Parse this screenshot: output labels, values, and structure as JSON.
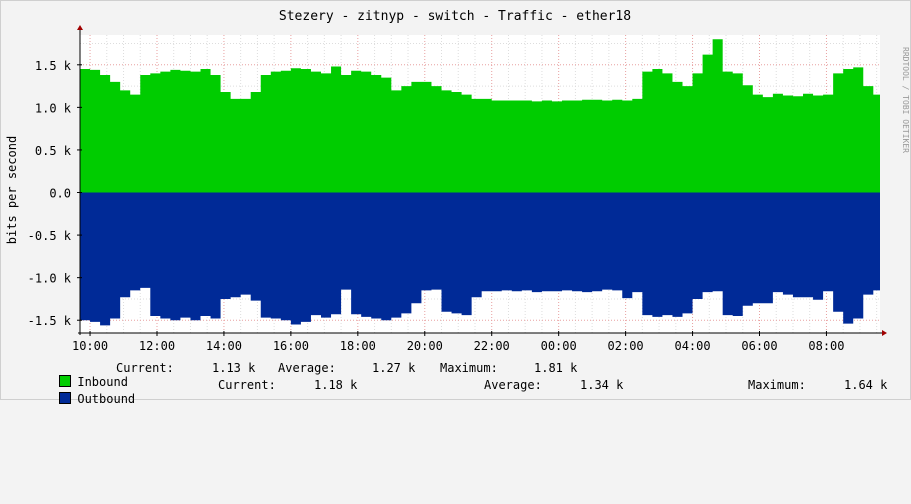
{
  "chart_data": {
    "type": "area",
    "title": "Stezery - zitnyp - switch - Traffic - ether18",
    "ylabel": "bits per second",
    "watermark": "RRDTOOL / TOBI OETIKER",
    "ylim": [
      -1650,
      1850
    ],
    "y_ticks": [
      {
        "value": 1500,
        "label": "1.5 k"
      },
      {
        "value": 1000,
        "label": "1.0 k"
      },
      {
        "value": 500,
        "label": "0.5 k"
      },
      {
        "value": 0,
        "label": "0.0"
      },
      {
        "value": -500,
        "label": "-0.5 k"
      },
      {
        "value": -1000,
        "label": "-1.0 k"
      },
      {
        "value": -1500,
        "label": "-1.5 k"
      }
    ],
    "xlim": [
      9.7,
      33.6
    ],
    "x_ticks": [
      {
        "value": 10,
        "label": "10:00"
      },
      {
        "value": 12,
        "label": "12:00"
      },
      {
        "value": 14,
        "label": "14:00"
      },
      {
        "value": 16,
        "label": "16:00"
      },
      {
        "value": 18,
        "label": "18:00"
      },
      {
        "value": 20,
        "label": "20:00"
      },
      {
        "value": 22,
        "label": "22:00"
      },
      {
        "value": 24,
        "label": "00:00"
      },
      {
        "value": 26,
        "label": "02:00"
      },
      {
        "value": 28,
        "label": "04:00"
      },
      {
        "value": 30,
        "label": "06:00"
      },
      {
        "value": 32,
        "label": "08:00"
      }
    ],
    "grid": true,
    "x": [
      9.7,
      10.0,
      10.3,
      10.6,
      10.9,
      11.2,
      11.5,
      11.8,
      12.1,
      12.4,
      12.7,
      13.0,
      13.3,
      13.6,
      13.9,
      14.2,
      14.5,
      14.8,
      15.1,
      15.4,
      15.7,
      16.0,
      16.3,
      16.6,
      16.9,
      17.2,
      17.5,
      17.8,
      18.1,
      18.4,
      18.7,
      19.0,
      19.3,
      19.6,
      19.9,
      20.2,
      20.5,
      20.8,
      21.1,
      21.4,
      21.7,
      22.0,
      22.3,
      22.6,
      22.9,
      23.2,
      23.5,
      23.8,
      24.1,
      24.4,
      24.7,
      25.0,
      25.3,
      25.6,
      25.9,
      26.2,
      26.5,
      26.8,
      27.1,
      27.4,
      27.7,
      28.0,
      28.3,
      28.6,
      28.9,
      29.2,
      29.5,
      29.8,
      30.1,
      30.4,
      30.7,
      31.0,
      31.3,
      31.6,
      31.9,
      32.2,
      32.5,
      32.8,
      33.1,
      33.4,
      33.6
    ],
    "series": [
      {
        "name": "Inbound",
        "color": "#00cc00",
        "values": [
          1450,
          1440,
          1380,
          1300,
          1200,
          1150,
          1380,
          1400,
          1420,
          1440,
          1430,
          1420,
          1450,
          1380,
          1180,
          1100,
          1100,
          1180,
          1380,
          1420,
          1430,
          1460,
          1450,
          1420,
          1400,
          1480,
          1380,
          1430,
          1420,
          1380,
          1350,
          1200,
          1250,
          1300,
          1300,
          1250,
          1200,
          1180,
          1150,
          1100,
          1100,
          1080,
          1080,
          1080,
          1080,
          1070,
          1080,
          1070,
          1080,
          1080,
          1090,
          1090,
          1080,
          1090,
          1080,
          1100,
          1420,
          1450,
          1400,
          1300,
          1250,
          1400,
          1620,
          1800,
          1420,
          1400,
          1260,
          1150,
          1120,
          1160,
          1140,
          1130,
          1160,
          1140,
          1150,
          1400,
          1450,
          1470,
          1250,
          1150,
          1130
        ]
      },
      {
        "name": "Outbound",
        "color": "#002a97",
        "values": [
          -1500,
          -1520,
          -1560,
          -1480,
          -1230,
          -1150,
          -1120,
          -1450,
          -1480,
          -1500,
          -1470,
          -1500,
          -1450,
          -1480,
          -1250,
          -1230,
          -1200,
          -1270,
          -1470,
          -1480,
          -1500,
          -1550,
          -1520,
          -1440,
          -1470,
          -1430,
          -1140,
          -1430,
          -1460,
          -1480,
          -1500,
          -1470,
          -1420,
          -1300,
          -1150,
          -1140,
          -1400,
          -1420,
          -1440,
          -1230,
          -1160,
          -1160,
          -1150,
          -1160,
          -1150,
          -1170,
          -1160,
          -1160,
          -1150,
          -1160,
          -1170,
          -1160,
          -1140,
          -1150,
          -1240,
          -1170,
          -1440,
          -1460,
          -1440,
          -1460,
          -1420,
          -1250,
          -1170,
          -1160,
          -1440,
          -1450,
          -1330,
          -1300,
          -1300,
          -1170,
          -1200,
          -1230,
          -1230,
          -1260,
          -1160,
          -1400,
          -1540,
          -1480,
          -1200,
          -1150,
          -1180
        ]
      }
    ]
  },
  "legend": [
    {
      "name": "Inbound",
      "color": "#00cc00",
      "current_label": "Current:",
      "current_value": "1.13 k",
      "average_label": "Average:",
      "average_value": "1.27 k",
      "maximum_label": "Maximum:",
      "maximum_value": "1.81 k"
    },
    {
      "name": "Outbound",
      "color": "#002a97",
      "current_label": "Current:",
      "current_value": "1.18 k",
      "average_label": "Average:",
      "average_value": "1.34 k",
      "maximum_label": "Maximum:",
      "maximum_value": "1.64 k"
    }
  ]
}
